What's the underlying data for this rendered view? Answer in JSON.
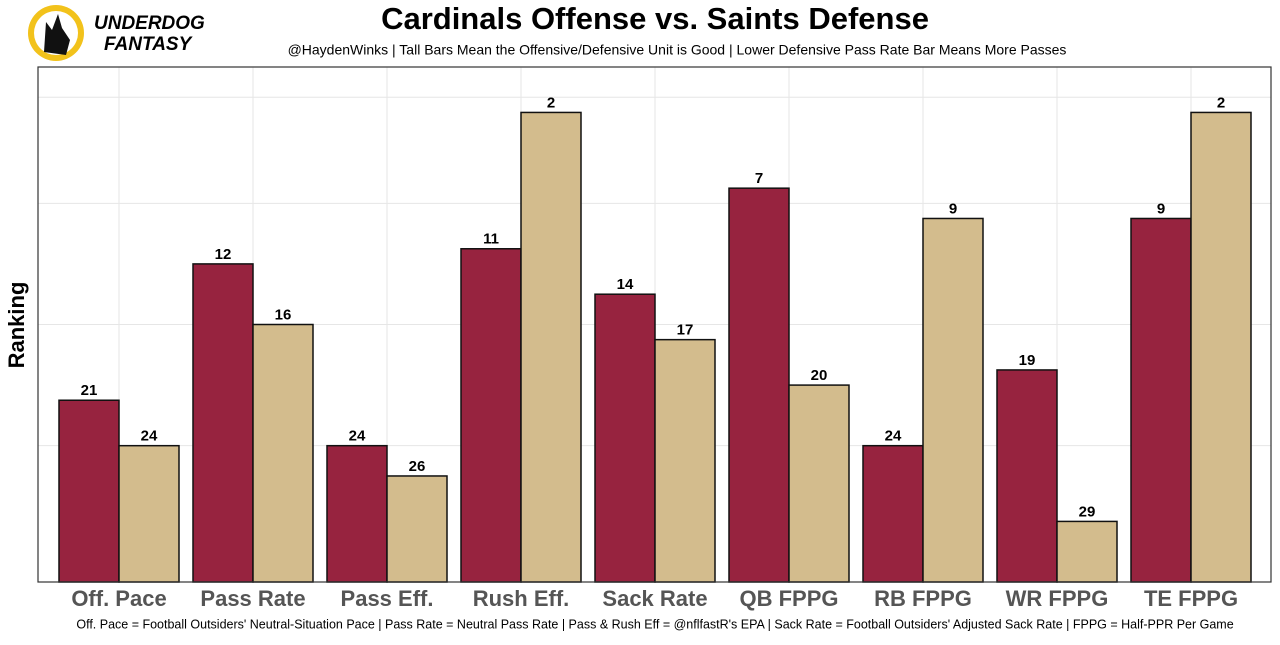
{
  "logo": {
    "line1": "UNDERDOG",
    "line2": "FANTASY"
  },
  "chart_data": {
    "type": "bar",
    "title": "Cardinals Offense vs. Saints Defense",
    "subtitle": "@HaydenWinks | Tall Bars Mean the Offensive/Defensive Unit is Good | Lower Defensive Pass Rate Bar Means More Passes",
    "y_label": "Ranking",
    "footnote": "Off. Pace = Football Outsiders' Neutral-Situation Pace | Pass Rate = Neutral Pass Rate | Pass & Rush Eff = @nflfastR's EPA | Sack Rate = Football Outsiders' Adjusted Sack Rate | FPPG = Half-PPR Per Game",
    "categories": [
      "Off. Pace",
      "Pass Rate",
      "Pass Eff.",
      "Rush Eff.",
      "Sack Rate",
      "QB FPPG",
      "RB FPPG",
      "WR FPPG",
      "TE FPPG"
    ],
    "series": [
      {
        "color": "#97233f",
        "values": [
          21,
          12,
          24,
          11,
          14,
          7,
          24,
          19,
          9
        ]
      },
      {
        "color": "#d3bc8d",
        "values": [
          24,
          16,
          26,
          2,
          17,
          20,
          9,
          29,
          2
        ]
      }
    ],
    "ylim": [
      33,
      -1
    ],
    "yticks": [
      1,
      8,
      16,
      24
    ],
    "grid": true
  }
}
